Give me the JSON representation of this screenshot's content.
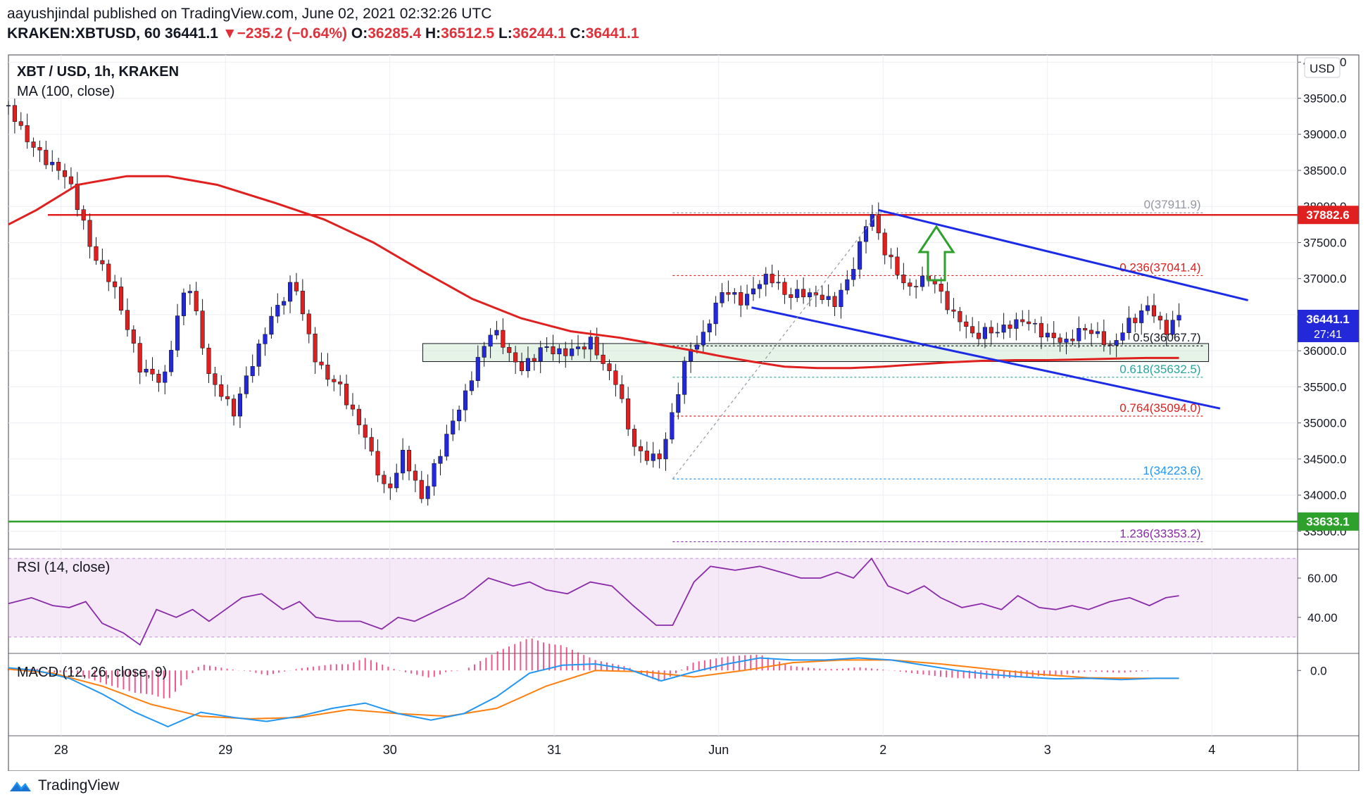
{
  "header": {
    "publisher": "aayushjindal",
    "published_text": "published on TradingView.com, June 02, 2021 02:32:26 UTC",
    "symbol": "KRAKEN:XBTUSD, 60",
    "last": "36441.1",
    "change": "−235.2 (−0.64%)",
    "o_label": "O:",
    "o": "36285.4",
    "h_label": "H:",
    "h": "36512.5",
    "l_label": "L:",
    "l": "36244.1",
    "c_label": "C:",
    "c": "36441.1"
  },
  "legend": {
    "title": "XBT / USD, 1h, KRAKEN",
    "ma": "MA (100, close)",
    "rsi": "RSI (14, close)",
    "macd": "MACD (12, 26, close, 9)"
  },
  "currency": "USD",
  "brand": "TradingView",
  "colors": {
    "up": "#2329d8",
    "down": "#e0201e",
    "ma": "#e0201e",
    "resist": "#e0201e",
    "support": "#2ea02c",
    "channel": "#1c2be6",
    "arrow": "#2ea02c",
    "rsi": "#8a2aa8",
    "macd": "#2196f3",
    "signal": "#ff7f0e",
    "hist": "#e91e63"
  },
  "chart_data": [
    {
      "type": "candlestick",
      "title": "XBT / USD, 1h, KRAKEN",
      "ylim": [
        33250,
        40100
      ],
      "y_ticks": [
        33500,
        34000,
        34500,
        35000,
        35500,
        36000,
        36500,
        37000,
        37500,
        38000,
        38500,
        39000,
        39500,
        40000
      ],
      "x_tick_labels": [
        "28",
        "29",
        "30",
        "31",
        "Jun",
        "2",
        "3",
        "4"
      ],
      "x_tick_days": [
        1,
        2,
        3,
        4,
        5,
        6,
        7,
        8
      ],
      "x_range_days": [
        0.68,
        8.5
      ],
      "anchors": [
        [
          0.68,
          39400
        ],
        [
          0.85,
          38800
        ],
        [
          1.05,
          38300
        ],
        [
          1.18,
          37400
        ],
        [
          1.33,
          36900
        ],
        [
          1.48,
          35800
        ],
        [
          1.62,
          35500
        ],
        [
          1.77,
          37000
        ],
        [
          1.9,
          35700
        ],
        [
          2.05,
          35200
        ],
        [
          2.18,
          35900
        ],
        [
          2.3,
          36500
        ],
        [
          2.42,
          36950
        ],
        [
          2.55,
          35900
        ],
        [
          2.7,
          35500
        ],
        [
          2.86,
          34700
        ],
        [
          2.98,
          33950
        ],
        [
          3.08,
          34600
        ],
        [
          3.2,
          34000
        ],
        [
          3.3,
          34600
        ],
        [
          3.45,
          35300
        ],
        [
          3.62,
          36300
        ],
        [
          3.8,
          35800
        ],
        [
          3.92,
          36050
        ],
        [
          4.08,
          35900
        ],
        [
          4.22,
          36100
        ],
        [
          4.38,
          35600
        ],
        [
          4.5,
          34600
        ],
        [
          4.65,
          34460
        ],
        [
          4.72,
          35100
        ],
        [
          4.82,
          36000
        ],
        [
          4.9,
          36200
        ],
        [
          5.02,
          36900
        ],
        [
          5.15,
          36700
        ],
        [
          5.3,
          37000
        ],
        [
          5.4,
          36750
        ],
        [
          5.58,
          36850
        ],
        [
          5.7,
          36700
        ],
        [
          5.8,
          37000
        ],
        [
          5.92,
          37880
        ],
        [
          6.02,
          37300
        ],
        [
          6.15,
          36900
        ],
        [
          6.28,
          37100
        ],
        [
          6.42,
          36500
        ],
        [
          6.55,
          36150
        ],
        [
          6.7,
          36300
        ],
        [
          6.85,
          36500
        ],
        [
          7.0,
          36200
        ],
        [
          7.1,
          36050
        ],
        [
          7.25,
          36300
        ],
        [
          7.38,
          36100
        ],
        [
          7.5,
          36450
        ],
        [
          7.62,
          36600
        ],
        [
          7.72,
          36200
        ],
        [
          7.8,
          36441
        ]
      ],
      "ma100": [
        [
          0.68,
          37750
        ],
        [
          0.85,
          37950
        ],
        [
          1.1,
          38300
        ],
        [
          1.4,
          38420
        ],
        [
          1.65,
          38420
        ],
        [
          1.95,
          38300
        ],
        [
          2.3,
          38050
        ],
        [
          2.6,
          37820
        ],
        [
          2.9,
          37500
        ],
        [
          3.2,
          37100
        ],
        [
          3.5,
          36720
        ],
        [
          3.8,
          36450
        ],
        [
          4.1,
          36270
        ],
        [
          4.4,
          36180
        ],
        [
          4.6,
          36100
        ],
        [
          4.8,
          36020
        ],
        [
          5.0,
          35930
        ],
        [
          5.2,
          35850
        ],
        [
          5.4,
          35780
        ],
        [
          5.6,
          35760
        ],
        [
          5.8,
          35760
        ],
        [
          6.0,
          35780
        ],
        [
          6.2,
          35810
        ],
        [
          6.4,
          35840
        ],
        [
          6.6,
          35860
        ],
        [
          6.8,
          35870
        ],
        [
          7.0,
          35870
        ],
        [
          7.2,
          35880
        ],
        [
          7.4,
          35890
        ],
        [
          7.6,
          35900
        ],
        [
          7.8,
          35900
        ]
      ],
      "price_labels": [
        {
          "value": "37882.6",
          "price": 37882.6,
          "color": "#e0201e"
        },
        {
          "value": "36441.1",
          "sub": "27:41",
          "price": 36441.1,
          "color": "#2329d8"
        },
        {
          "value": "33633.1",
          "price": 33633.1,
          "color": "#2ea02c"
        }
      ],
      "resistance": 37882.6,
      "support": 33633.1,
      "fib_levels": [
        {
          "label": "0(37911.9)",
          "price": 37911.9,
          "color": "#9598a1"
        },
        {
          "label": "0.236(37041.4)",
          "price": 37041.4,
          "color": "#e0201e"
        },
        {
          "label": "0.5(36067.7)",
          "price": 36067.7,
          "color": "#131722"
        },
        {
          "label": "0.618(35632.5)",
          "price": 35632.5,
          "color": "#26a69a"
        },
        {
          "label": "0.764(35094.0)",
          "price": 35094.0,
          "color": "#e0201e"
        },
        {
          "label": "1(34223.6)",
          "price": 34223.6,
          "color": "#2196f3"
        },
        {
          "label": "1.236(33353.2)",
          "price": 33353.2,
          "color": "#8a2aa8"
        }
      ],
      "fib_range": [
        4.72,
        7.95
      ],
      "demand_zone": {
        "from_day": 3.2,
        "to_day": 7.98,
        "low": 35850,
        "high": 36100
      },
      "channel_upper": [
        [
          5.97,
          37950
        ],
        [
          8.22,
          36700
        ]
      ],
      "channel_lower": [
        [
          5.2,
          36600
        ],
        [
          8.05,
          35200
        ]
      ],
      "fib_trend": [
        [
          4.72,
          34223.6
        ],
        [
          5.97,
          37911.9
        ]
      ]
    },
    {
      "type": "line",
      "title": "RSI (14, close)",
      "ylim": [
        22,
        74
      ],
      "band": [
        30,
        70
      ],
      "y_ticks": [
        40.0,
        60.0
      ],
      "points": [
        [
          0.68,
          47
        ],
        [
          0.82,
          50
        ],
        [
          0.95,
          46
        ],
        [
          1.05,
          45
        ],
        [
          1.15,
          48
        ],
        [
          1.25,
          37
        ],
        [
          1.38,
          32
        ],
        [
          1.48,
          26
        ],
        [
          1.58,
          44
        ],
        [
          1.7,
          40
        ],
        [
          1.8,
          44
        ],
        [
          1.9,
          38
        ],
        [
          2.0,
          44
        ],
        [
          2.1,
          50
        ],
        [
          2.22,
          52
        ],
        [
          2.35,
          44
        ],
        [
          2.45,
          48
        ],
        [
          2.55,
          40
        ],
        [
          2.68,
          38
        ],
        [
          2.82,
          38
        ],
        [
          2.95,
          34
        ],
        [
          3.05,
          40
        ],
        [
          3.15,
          38
        ],
        [
          3.3,
          44
        ],
        [
          3.45,
          50
        ],
        [
          3.6,
          60
        ],
        [
          3.75,
          56
        ],
        [
          3.85,
          58
        ],
        [
          3.95,
          54
        ],
        [
          4.08,
          52
        ],
        [
          4.22,
          58
        ],
        [
          4.35,
          56
        ],
        [
          4.48,
          46
        ],
        [
          4.62,
          36
        ],
        [
          4.72,
          36
        ],
        [
          4.85,
          58
        ],
        [
          4.95,
          66
        ],
        [
          5.1,
          64
        ],
        [
          5.25,
          66
        ],
        [
          5.38,
          63
        ],
        [
          5.5,
          60
        ],
        [
          5.62,
          60
        ],
        [
          5.72,
          63
        ],
        [
          5.82,
          60
        ],
        [
          5.93,
          70
        ],
        [
          6.03,
          56
        ],
        [
          6.15,
          52
        ],
        [
          6.25,
          56
        ],
        [
          6.35,
          50
        ],
        [
          6.48,
          45
        ],
        [
          6.6,
          47
        ],
        [
          6.72,
          44
        ],
        [
          6.82,
          51
        ],
        [
          6.95,
          45
        ],
        [
          7.05,
          44
        ],
        [
          7.15,
          46
        ],
        [
          7.25,
          44
        ],
        [
          7.38,
          48
        ],
        [
          7.5,
          50
        ],
        [
          7.62,
          46
        ],
        [
          7.72,
          50
        ],
        [
          7.8,
          51
        ]
      ]
    },
    {
      "type": "line",
      "title": "MACD (12, 26, close, 9)",
      "ylim": [
        -250,
        60
      ],
      "y_ticks": [
        0.0
      ],
      "macd": [
        [
          0.68,
          10
        ],
        [
          0.85,
          0
        ],
        [
          1.05,
          -30
        ],
        [
          1.25,
          -90
        ],
        [
          1.45,
          -160
        ],
        [
          1.65,
          -215
        ],
        [
          1.85,
          -160
        ],
        [
          2.05,
          -180
        ],
        [
          2.25,
          -195
        ],
        [
          2.45,
          -175
        ],
        [
          2.65,
          -145
        ],
        [
          2.85,
          -125
        ],
        [
          3.05,
          -165
        ],
        [
          3.25,
          -190
        ],
        [
          3.45,
          -165
        ],
        [
          3.65,
          -100
        ],
        [
          3.85,
          -10
        ],
        [
          4.05,
          20
        ],
        [
          4.25,
          25
        ],
        [
          4.45,
          5
        ],
        [
          4.65,
          -40
        ],
        [
          4.85,
          -5
        ],
        [
          5.05,
          25
        ],
        [
          5.25,
          48
        ],
        [
          5.45,
          40
        ],
        [
          5.65,
          40
        ],
        [
          5.85,
          48
        ],
        [
          6.05,
          40
        ],
        [
          6.25,
          20
        ],
        [
          6.45,
          0
        ],
        [
          6.65,
          -15
        ],
        [
          6.85,
          -25
        ],
        [
          7.05,
          -32
        ],
        [
          7.25,
          -30
        ],
        [
          7.45,
          -35
        ],
        [
          7.65,
          -30
        ],
        [
          7.8,
          -30
        ]
      ],
      "signal": [
        [
          0.68,
          5
        ],
        [
          0.95,
          -10
        ],
        [
          1.25,
          -60
        ],
        [
          1.55,
          -130
        ],
        [
          1.85,
          -175
        ],
        [
          2.15,
          -185
        ],
        [
          2.45,
          -180
        ],
        [
          2.75,
          -150
        ],
        [
          3.05,
          -165
        ],
        [
          3.35,
          -175
        ],
        [
          3.65,
          -145
        ],
        [
          3.95,
          -60
        ],
        [
          4.25,
          0
        ],
        [
          4.55,
          -5
        ],
        [
          4.85,
          -25
        ],
        [
          5.15,
          0
        ],
        [
          5.45,
          30
        ],
        [
          5.75,
          40
        ],
        [
          6.05,
          40
        ],
        [
          6.35,
          25
        ],
        [
          6.65,
          5
        ],
        [
          6.95,
          -15
        ],
        [
          7.25,
          -28
        ],
        [
          7.55,
          -30
        ],
        [
          7.8,
          -30
        ]
      ]
    }
  ]
}
